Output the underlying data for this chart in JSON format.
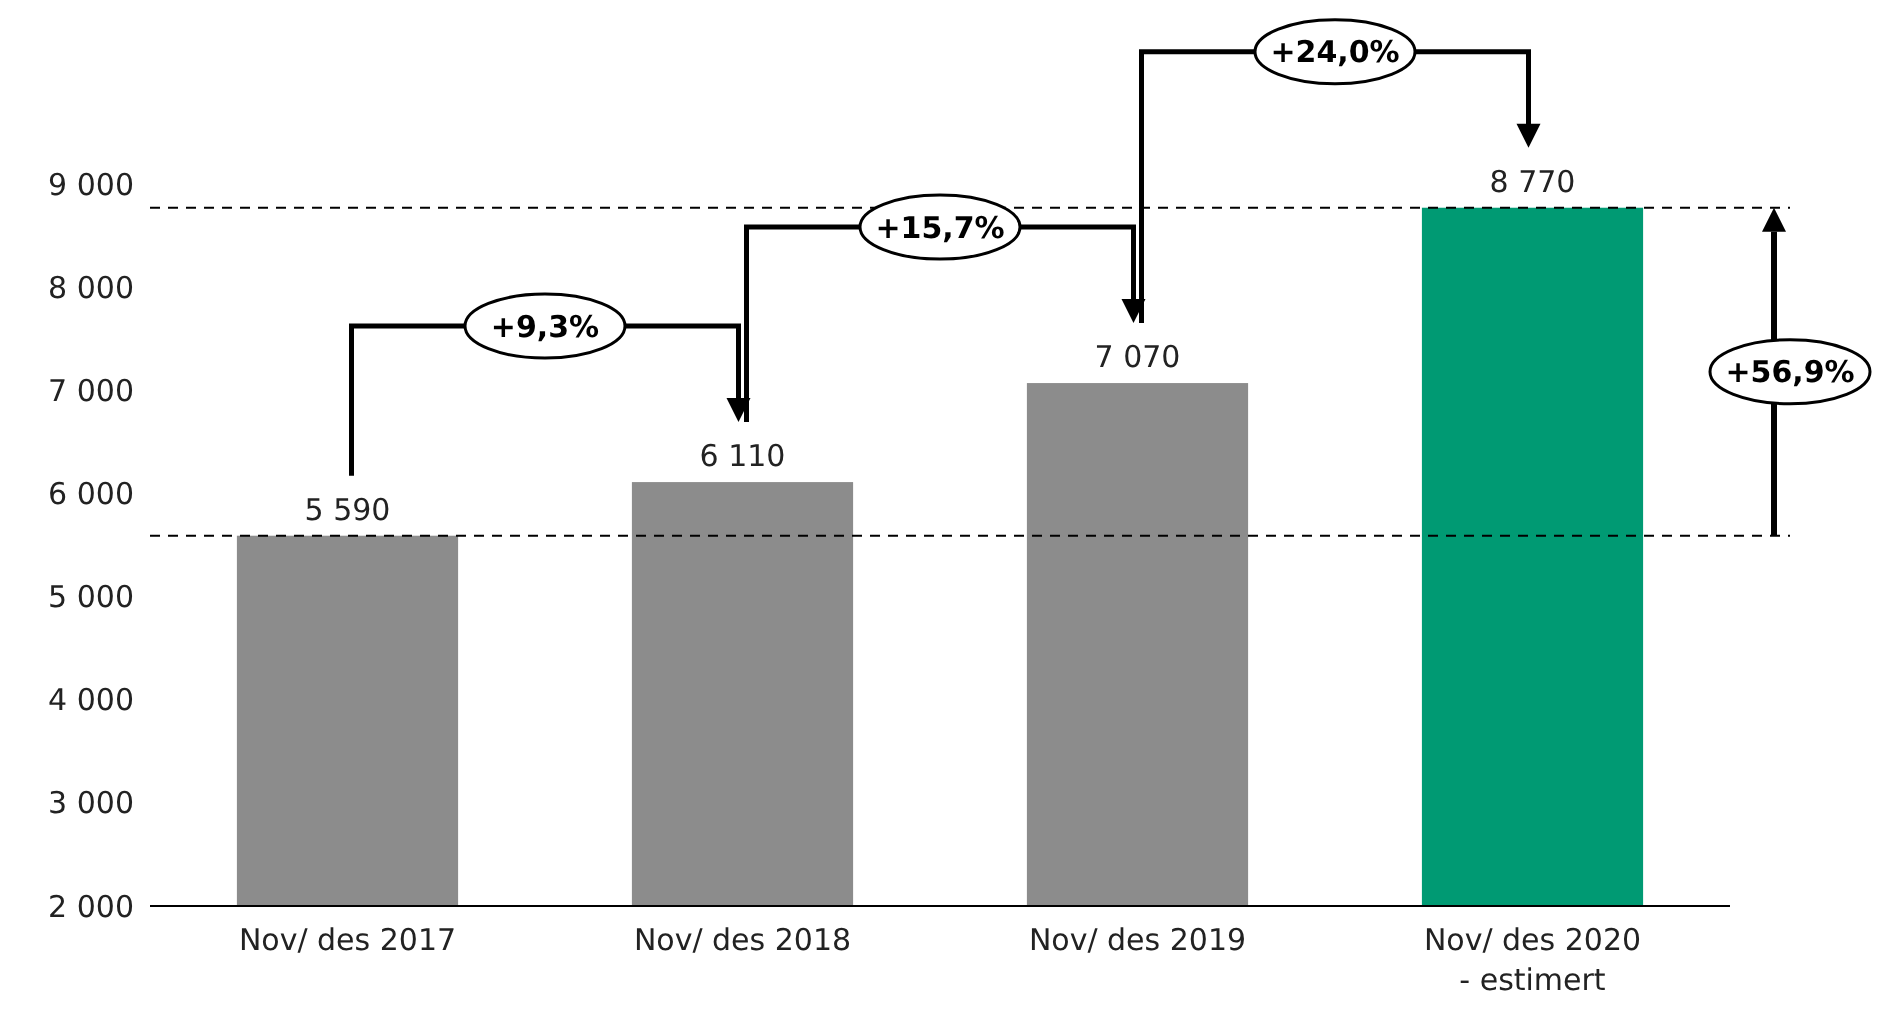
{
  "chart_data": {
    "type": "bar",
    "categories": [
      "Nov/ des 2017",
      "Nov/ des 2018",
      "Nov/ des 2019",
      "Nov/ des 2020\n- estimert"
    ],
    "values": [
      5590,
      6110,
      7070,
      8770
    ],
    "colors": [
      "#8c8c8c",
      "#8c8c8c",
      "#8c8c8c",
      "#009a73"
    ],
    "value_labels": [
      "5 590",
      "6 110",
      "7 070",
      "8 770"
    ],
    "ylim": [
      2000,
      9000
    ],
    "yticks": [
      {
        "value": 2000,
        "label": "2 000"
      },
      {
        "value": 3000,
        "label": "3 000"
      },
      {
        "value": 4000,
        "label": "4 000"
      },
      {
        "value": 5000,
        "label": "5 000"
      },
      {
        "value": 6000,
        "label": "6 000"
      },
      {
        "value": 7000,
        "label": "7 000"
      },
      {
        "value": 8000,
        "label": "8 000"
      },
      {
        "value": 9000,
        "label": "9 000"
      }
    ],
    "ref_lines": [
      {
        "axis": "y",
        "value": 5590,
        "line_style": "dashed"
      },
      {
        "axis": "y",
        "value": 8770,
        "line_style": "dashed"
      }
    ],
    "annotations": [
      "+9,3%",
      "+15,7%",
      "+24,0%",
      "+56,9%"
    ],
    "grid": false
  }
}
